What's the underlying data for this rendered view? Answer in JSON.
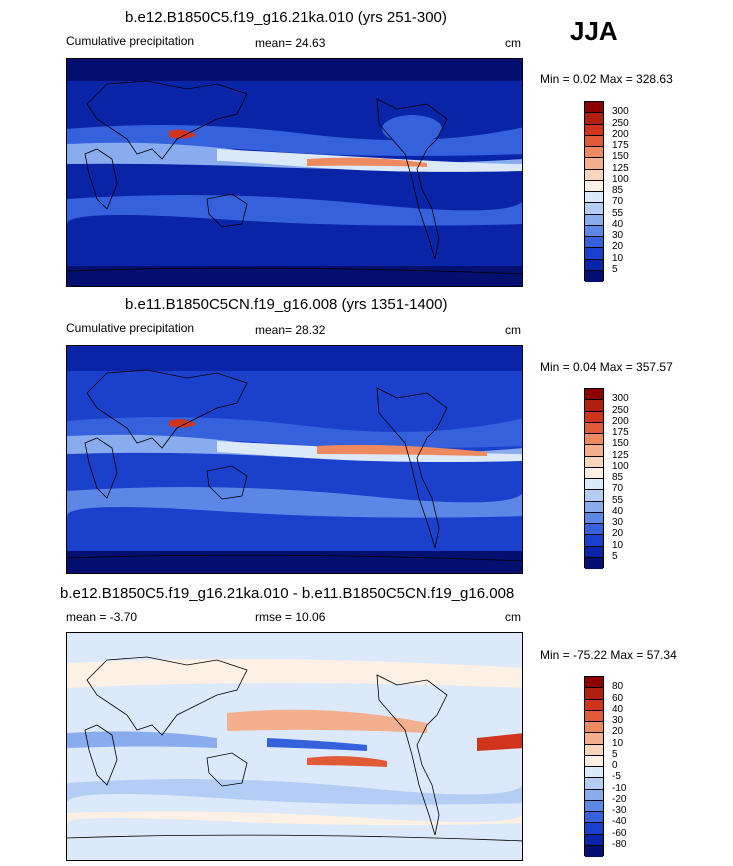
{
  "season": "JJA",
  "panels": [
    {
      "title": "b.e12.B1850C5.f19_g16.21ka.010 (yrs 251-300)",
      "left_label": "Cumulative precipitation",
      "stat_label": "mean=  24.63",
      "units": "cm",
      "minmax": "Min =   0.02 Max = 328.63",
      "levels": [
        "300",
        "250",
        "200",
        "175",
        "150",
        "125",
        "100",
        "85",
        "70",
        "55",
        "40",
        "30",
        "20",
        "10",
        "5"
      ],
      "colors": [
        "#8b0000",
        "#b0200e",
        "#d0341c",
        "#e05a35",
        "#ee8a60",
        "#f4b08e",
        "#f9d5bd",
        "#fdf0e4",
        "#dce9fb",
        "#b4cdf5",
        "#89acef",
        "#5d87e6",
        "#3561dd",
        "#1a40cc",
        "#0a24a8",
        "#040f70"
      ]
    },
    {
      "title": "b.e11.B1850C5CN.f19_g16.008 (yrs 1351-1400)",
      "left_label": "Cumulative precipitation",
      "stat_label": "mean=  28.32",
      "units": "cm",
      "minmax": "Min =   0.04 Max = 357.57",
      "levels": [
        "300",
        "250",
        "200",
        "175",
        "150",
        "125",
        "100",
        "85",
        "70",
        "55",
        "40",
        "30",
        "20",
        "10",
        "5"
      ],
      "colors": [
        "#8b0000",
        "#b0200e",
        "#d0341c",
        "#e05a35",
        "#ee8a60",
        "#f4b08e",
        "#f9d5bd",
        "#fdf0e4",
        "#dce9fb",
        "#b4cdf5",
        "#89acef",
        "#5d87e6",
        "#3561dd",
        "#1a40cc",
        "#0a24a8",
        "#040f70"
      ]
    },
    {
      "title": "b.e12.B1850C5.f19_g16.21ka.010 - b.e11.B1850C5CN.f19_g16.008",
      "left_label": "mean =  -3.70",
      "stat_label": "rmse =  10.06",
      "units": "cm",
      "minmax": "Min = -75.22 Max =  57.34",
      "levels": [
        "80",
        "60",
        "40",
        "30",
        "20",
        "10",
        "5",
        "0",
        "-5",
        "-10",
        "-20",
        "-30",
        "-40",
        "-60",
        "-80"
      ],
      "colors": [
        "#8b0000",
        "#b0200e",
        "#d0341c",
        "#e05a35",
        "#ee8a60",
        "#f4b08e",
        "#f9d5bd",
        "#fdf0e4",
        "#dce9fb",
        "#b4cdf5",
        "#89acef",
        "#5d87e6",
        "#3561dd",
        "#1a40cc",
        "#0a24a8",
        "#040f70"
      ]
    }
  ],
  "chart_data": [
    {
      "type": "heatmap",
      "title": "b.e12.B1850C5.f19_g16.21ka.010 (yrs 251-300)",
      "variable": "Cumulative precipitation",
      "units": "cm",
      "mean": 24.63,
      "min": 0.02,
      "max": 328.63,
      "contour_levels": [
        5,
        10,
        20,
        30,
        40,
        55,
        70,
        85,
        100,
        125,
        150,
        175,
        200,
        250,
        300
      ]
    },
    {
      "type": "heatmap",
      "title": "b.e11.B1850C5CN.f19_g16.008 (yrs 1351-1400)",
      "variable": "Cumulative precipitation",
      "units": "cm",
      "mean": 28.32,
      "min": 0.04,
      "max": 357.57,
      "contour_levels": [
        5,
        10,
        20,
        30,
        40,
        55,
        70,
        85,
        100,
        125,
        150,
        175,
        200,
        250,
        300
      ]
    },
    {
      "type": "heatmap",
      "title": "b.e12.B1850C5.f19_g16.21ka.010 - b.e11.B1850C5CN.f19_g16.008",
      "units": "cm",
      "mean": -3.7,
      "rmse": 10.06,
      "min": -75.22,
      "max": 57.34,
      "contour_levels": [
        -80,
        -60,
        -40,
        -30,
        -20,
        -10,
        -5,
        0,
        5,
        10,
        20,
        30,
        40,
        60,
        80
      ]
    }
  ]
}
